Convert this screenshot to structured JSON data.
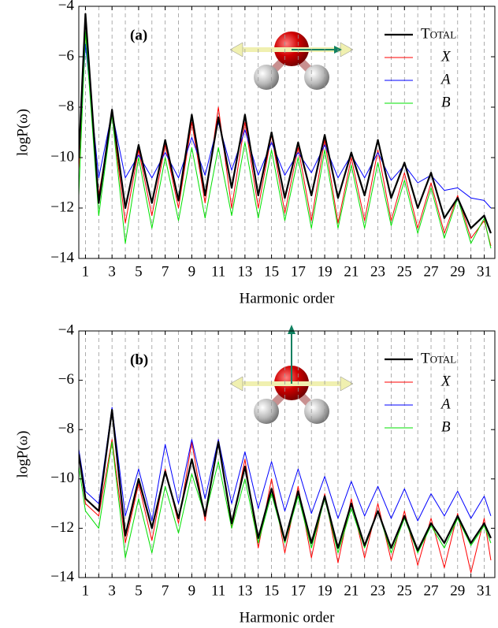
{
  "chart_data": [
    {
      "type": "line",
      "title": "(a)",
      "xlabel": "Harmonic order",
      "ylabel": "logP(ω)",
      "x": [
        0.5,
        1,
        2,
        3,
        4,
        5,
        6,
        7,
        8,
        9,
        10,
        11,
        12,
        13,
        14,
        15,
        16,
        17,
        18,
        19,
        20,
        21,
        22,
        23,
        24,
        25,
        26,
        27,
        28,
        29,
        30,
        31,
        31.5
      ],
      "series": [
        {
          "name": "Total",
          "color": "#000000",
          "values": [
            -10,
            -4.3,
            -11.8,
            -8.1,
            -12,
            -9.5,
            -11.8,
            -9.3,
            -11.7,
            -8.3,
            -11.5,
            -8.4,
            -11.2,
            -8.3,
            -11.5,
            -9,
            -11.6,
            -9.4,
            -11.5,
            -9.1,
            -11.6,
            -9.8,
            -11.5,
            -9.3,
            -11.6,
            -10.2,
            -12,
            -10.6,
            -12.4,
            -11.6,
            -12.8,
            -12.3,
            -13
          ]
        },
        {
          "name": "X",
          "color": "#ff0000",
          "values": [
            -10.5,
            -5,
            -11.5,
            -8.3,
            -12.6,
            -9.7,
            -12.3,
            -9.5,
            -12,
            -8.6,
            -11.8,
            -8,
            -12,
            -8.6,
            -12,
            -9.1,
            -12.2,
            -9.6,
            -12.5,
            -9.3,
            -12.6,
            -10,
            -12.5,
            -9.7,
            -12.5,
            -10.6,
            -12.8,
            -11,
            -13,
            -11.5,
            -13.2,
            -12.5,
            -13.5
          ]
        },
        {
          "name": "A",
          "color": "#0000ff",
          "values": [
            -10,
            -5.5,
            -10.8,
            -8.2,
            -10.8,
            -9.9,
            -10.8,
            -9.8,
            -10.8,
            -9.2,
            -10.7,
            -8.6,
            -10.5,
            -8.9,
            -10.7,
            -9.4,
            -10.7,
            -9.8,
            -10.6,
            -9.5,
            -10.8,
            -9.9,
            -10.8,
            -9.8,
            -10.9,
            -10.3,
            -11,
            -10.7,
            -11.3,
            -11.2,
            -11.6,
            -11.7,
            -12
          ]
        },
        {
          "name": "B",
          "color": "#00e000",
          "values": [
            -11.5,
            -5,
            -12.3,
            -8.3,
            -13.4,
            -10,
            -12.8,
            -10,
            -12.5,
            -9.6,
            -12.4,
            -9.6,
            -12.3,
            -9.4,
            -12.4,
            -9.7,
            -12.5,
            -10,
            -12.8,
            -9.7,
            -12.8,
            -10.3,
            -12.8,
            -10.2,
            -12.7,
            -10.9,
            -13,
            -11.2,
            -13.2,
            -11.6,
            -13.4,
            -12.4,
            -13.6
          ]
        }
      ],
      "xlim": [
        0.5,
        31.8
      ],
      "xticks": [
        1,
        3,
        5,
        7,
        9,
        11,
        13,
        15,
        17,
        19,
        21,
        23,
        25,
        27,
        29,
        31
      ],
      "minor_xticks": [
        2,
        4,
        6,
        8,
        10,
        12,
        14,
        16,
        18,
        20,
        22,
        24,
        26,
        28,
        30
      ],
      "ylim": [
        -14,
        -4
      ],
      "yticks": [
        {
          "value": -14,
          "label": "−14"
        },
        {
          "value": -12,
          "label": "−12"
        },
        {
          "value": -10,
          "label": "−10"
        },
        {
          "value": -8,
          "label": "−8"
        },
        {
          "value": -6,
          "label": "−6"
        },
        {
          "value": -4,
          "label": "−4"
        }
      ],
      "grid": "dashed-vertical",
      "legend": "upper right"
    },
    {
      "type": "line",
      "title": "(b)",
      "xlabel": "Harmonic order",
      "ylabel": "logP(ω)",
      "x": [
        0.5,
        1,
        2,
        3,
        4,
        5,
        6,
        7,
        8,
        9,
        10,
        11,
        12,
        13,
        14,
        15,
        16,
        17,
        18,
        19,
        20,
        21,
        22,
        23,
        24,
        25,
        26,
        27,
        28,
        29,
        30,
        31,
        31.5
      ],
      "series": [
        {
          "name": "Total",
          "color": "#000000",
          "values": [
            -9,
            -10.8,
            -11.3,
            -7.2,
            -12.3,
            -10,
            -12,
            -9.7,
            -11.6,
            -9.2,
            -11.5,
            -8.5,
            -11.8,
            -9.5,
            -12.4,
            -10.4,
            -12.5,
            -10.5,
            -12.6,
            -10.7,
            -12.8,
            -11,
            -12.7,
            -11.3,
            -12.8,
            -11.5,
            -12.9,
            -11.8,
            -12.6,
            -11.5,
            -12.6,
            -11.8,
            -12.4
          ]
        },
        {
          "name": "X",
          "color": "#ff0000",
          "values": [
            -9,
            -11,
            -11.5,
            -8.4,
            -12.6,
            -10.2,
            -12.5,
            -9.6,
            -11.8,
            -8.5,
            -11.7,
            -8.4,
            -12,
            -9.2,
            -12.8,
            -10,
            -13,
            -10.3,
            -13.2,
            -10.6,
            -13.4,
            -10.8,
            -13.2,
            -11,
            -13.3,
            -11.3,
            -13.5,
            -11.6,
            -13.6,
            -11.4,
            -13.8,
            -11.6,
            -13.3
          ]
        },
        {
          "name": "A",
          "color": "#0000ff",
          "values": [
            -8.8,
            -10.5,
            -11,
            -7.1,
            -11.5,
            -9.6,
            -11.7,
            -8.6,
            -11,
            -8.4,
            -10.8,
            -8.4,
            -11,
            -8.9,
            -11.2,
            -9.3,
            -11.3,
            -9.6,
            -11.4,
            -9.9,
            -11.6,
            -10.1,
            -11.5,
            -10.3,
            -11.6,
            -10.4,
            -11.7,
            -10.6,
            -11.5,
            -10.5,
            -11.6,
            -10.7,
            -11.5
          ]
        },
        {
          "name": "B",
          "color": "#00e000",
          "values": [
            -9.5,
            -11.3,
            -12,
            -8.5,
            -13.2,
            -10.8,
            -13,
            -10.3,
            -12.2,
            -9.8,
            -11.5,
            -9.3,
            -12,
            -10,
            -12.6,
            -10.6,
            -12.6,
            -10.7,
            -12.8,
            -10.8,
            -13,
            -11.2,
            -12.8,
            -11.3,
            -13,
            -11.6,
            -13,
            -11.9,
            -12.8,
            -11.6,
            -12.7,
            -11.9,
            -12.6
          ]
        }
      ],
      "xlim": [
        0.5,
        31.8
      ],
      "xticks": [
        1,
        3,
        5,
        7,
        9,
        11,
        13,
        15,
        17,
        19,
        21,
        23,
        25,
        27,
        29,
        31
      ],
      "minor_xticks": [
        2,
        4,
        6,
        8,
        10,
        12,
        14,
        16,
        18,
        20,
        22,
        24,
        26,
        28,
        30
      ],
      "ylim": [
        -14,
        -4
      ],
      "yticks": [
        {
          "value": -14,
          "label": "−14"
        },
        {
          "value": -12,
          "label": "−12"
        },
        {
          "value": -10,
          "label": "−10"
        },
        {
          "value": -8,
          "label": "−8"
        },
        {
          "value": -6,
          "label": "−6"
        },
        {
          "value": -4,
          "label": "−4"
        }
      ],
      "grid": "dashed-vertical",
      "legend": "upper right"
    }
  ]
}
